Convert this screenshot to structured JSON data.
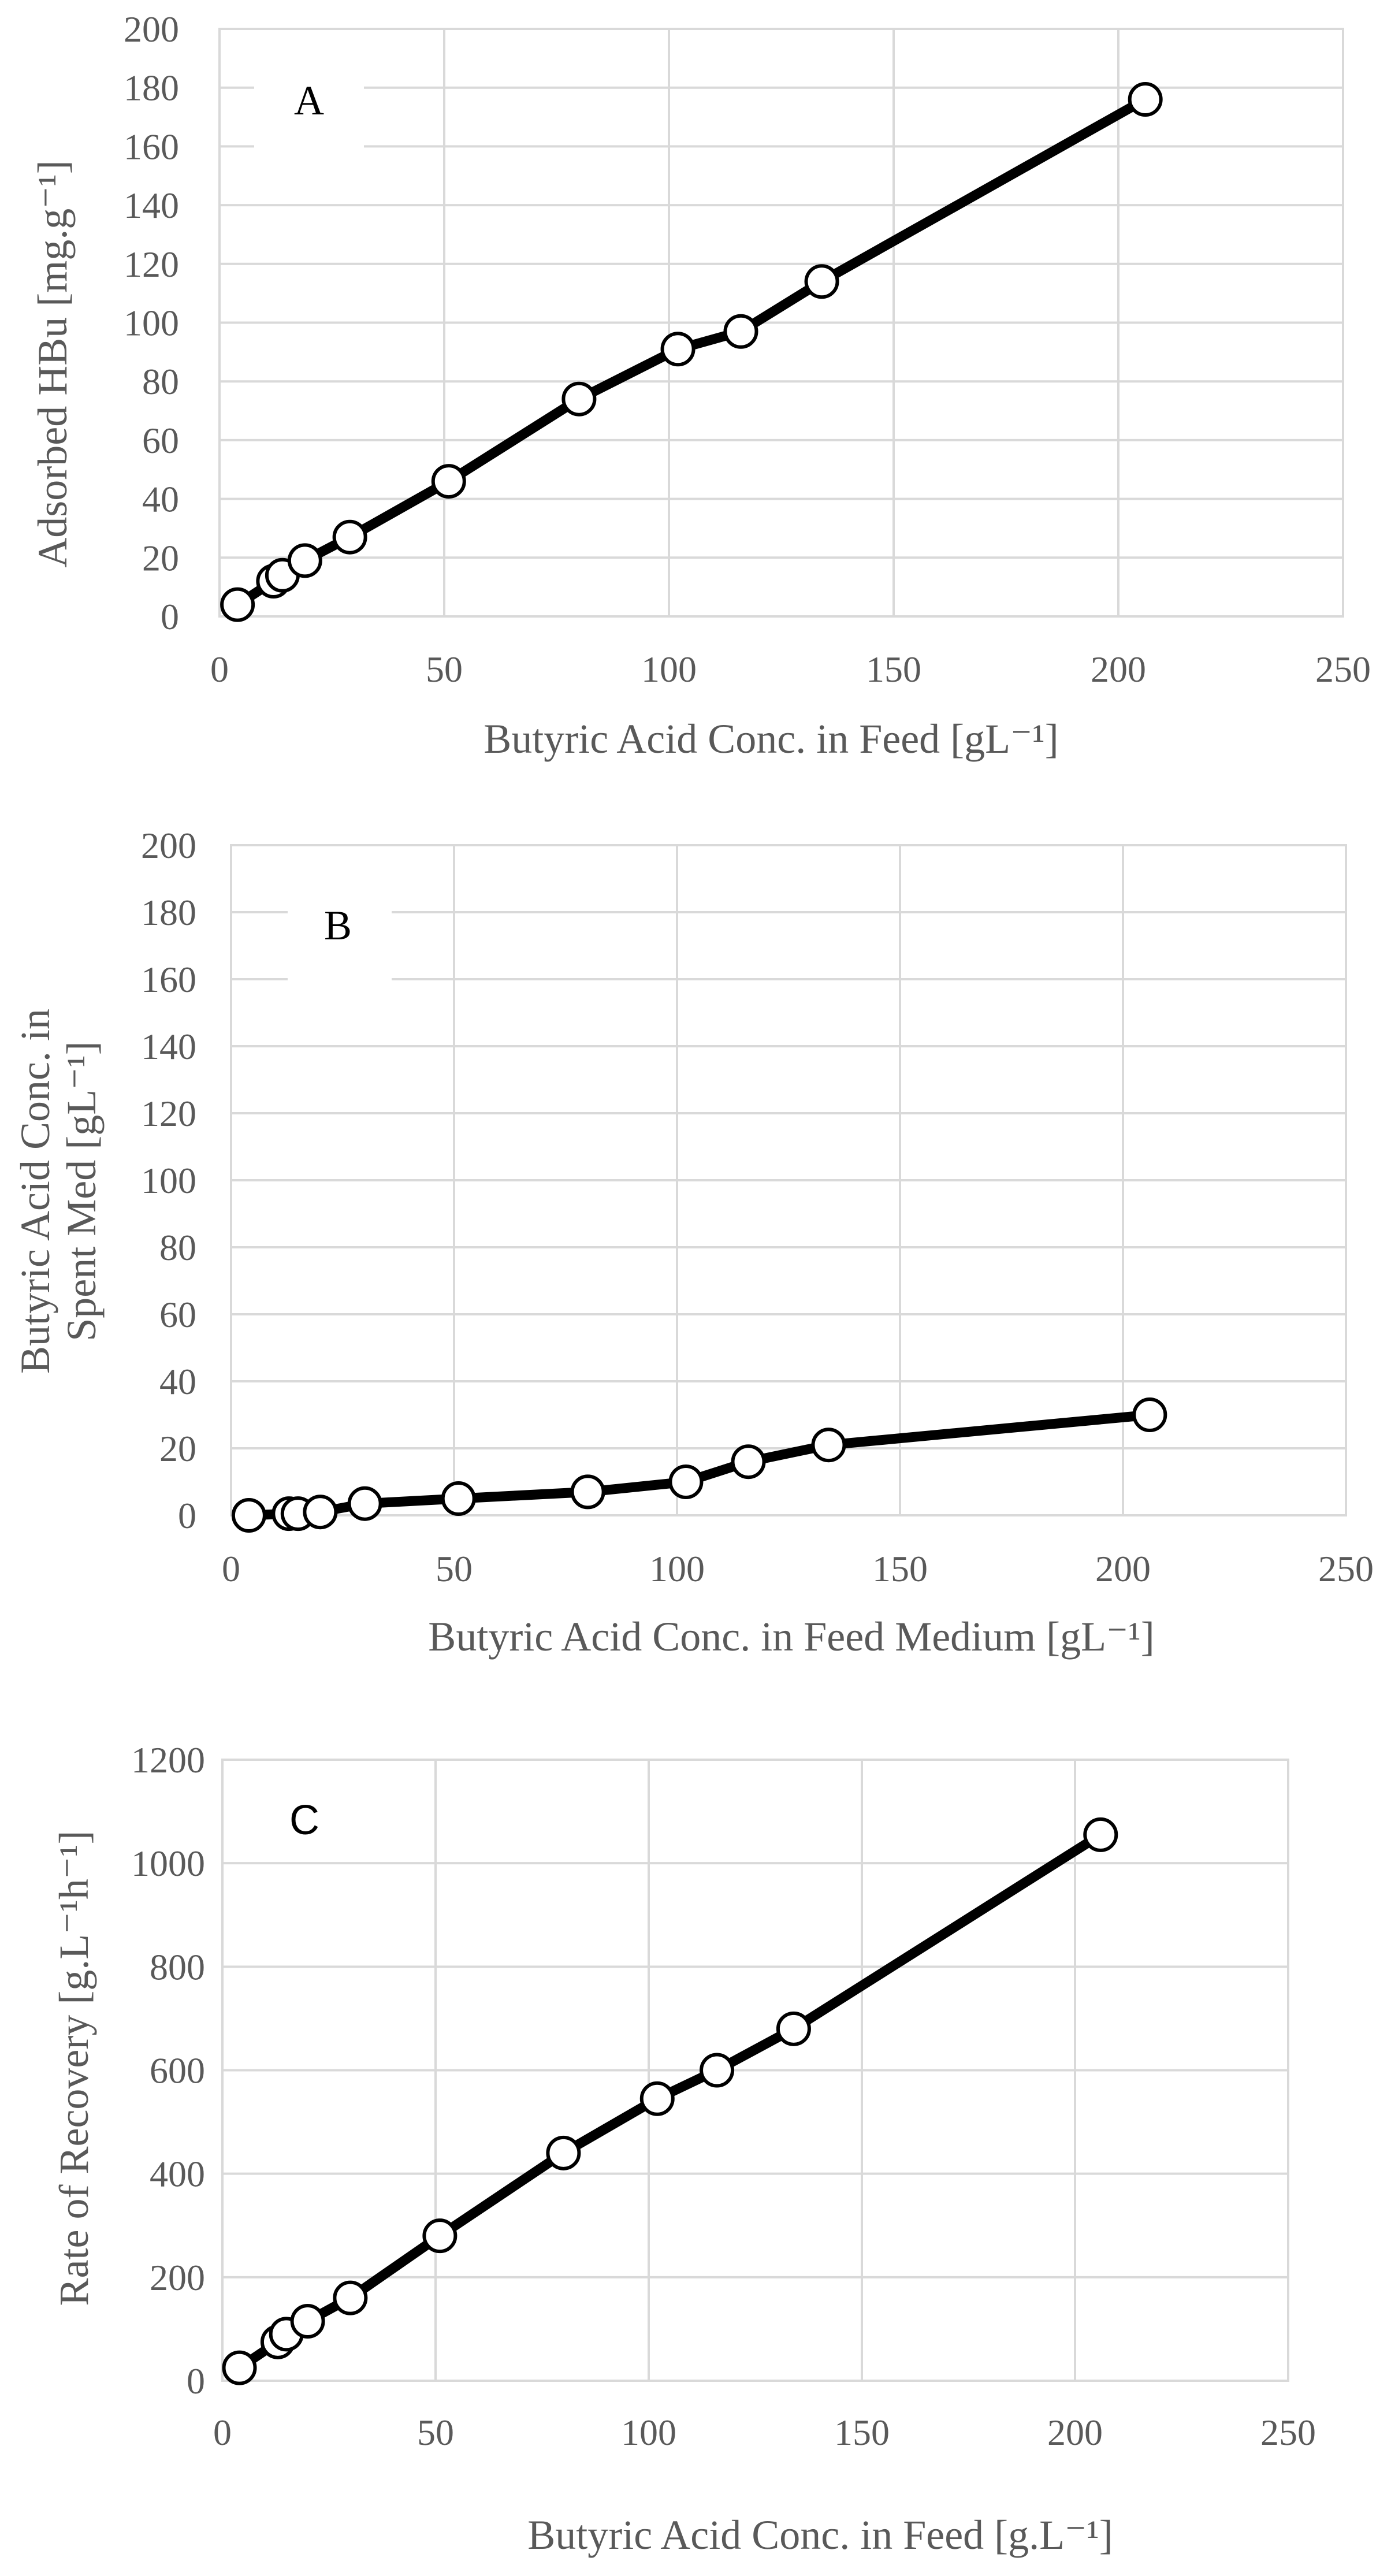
{
  "chart_data": [
    {
      "id": "A",
      "type": "line",
      "panel_label": "A",
      "xlabel": "Butyric Acid Conc. in Feed [gL⁻¹]",
      "ylabel": "Adsorbed HBu [mg.g⁻¹]",
      "xlim": [
        0,
        250
      ],
      "ylim": [
        0,
        200
      ],
      "xticks": [
        0,
        50,
        100,
        150,
        200,
        250
      ],
      "yticks": [
        0,
        20,
        40,
        60,
        80,
        100,
        120,
        140,
        160,
        180,
        200
      ],
      "grid": true,
      "series": [
        {
          "name": "Adsorbed HBu",
          "x": [
            4,
            12,
            14,
            19,
            29,
            51,
            80,
            102,
            116,
            134,
            206
          ],
          "y": [
            4,
            12,
            14,
            19,
            27,
            46,
            74,
            91,
            97,
            114,
            176
          ]
        }
      ]
    },
    {
      "id": "B",
      "type": "line",
      "panel_label": "B",
      "xlabel": "Butyric Acid Conc. in Feed Medium [gL⁻¹]",
      "ylabel_lines": [
        "Butyric Acid Conc. in",
        "Spent Med [gL⁻¹]"
      ],
      "xlim": [
        0,
        250
      ],
      "ylim": [
        0,
        200
      ],
      "xticks": [
        0,
        50,
        100,
        150,
        200,
        250
      ],
      "yticks": [
        0,
        20,
        40,
        60,
        80,
        100,
        120,
        140,
        160,
        180,
        200
      ],
      "grid": true,
      "series": [
        {
          "name": "Spent medium concentration",
          "x": [
            4,
            13,
            15,
            20,
            30,
            51,
            80,
            102,
            116,
            134,
            206
          ],
          "y": [
            0,
            0.5,
            0.5,
            1,
            3.5,
            5,
            7,
            10,
            16,
            21,
            30
          ]
        }
      ]
    },
    {
      "id": "C",
      "type": "line",
      "panel_label": "C",
      "xlabel": "Butyric Acid Conc. in Feed [g.L⁻¹]",
      "ylabel": "Rate of Recovery [g.L⁻¹h⁻¹]",
      "xlim": [
        0,
        250
      ],
      "ylim": [
        0,
        1200
      ],
      "xticks": [
        0,
        50,
        100,
        150,
        200,
        250
      ],
      "yticks": [
        0,
        200,
        400,
        600,
        800,
        1000,
        1200
      ],
      "grid": true,
      "series": [
        {
          "name": "Rate of recovery",
          "x": [
            4,
            13,
            15,
            20,
            30,
            51,
            80,
            102,
            116,
            134,
            206
          ],
          "y": [
            25,
            75,
            90,
            115,
            160,
            280,
            440,
            545,
            600,
            680,
            1055
          ]
        }
      ]
    }
  ]
}
